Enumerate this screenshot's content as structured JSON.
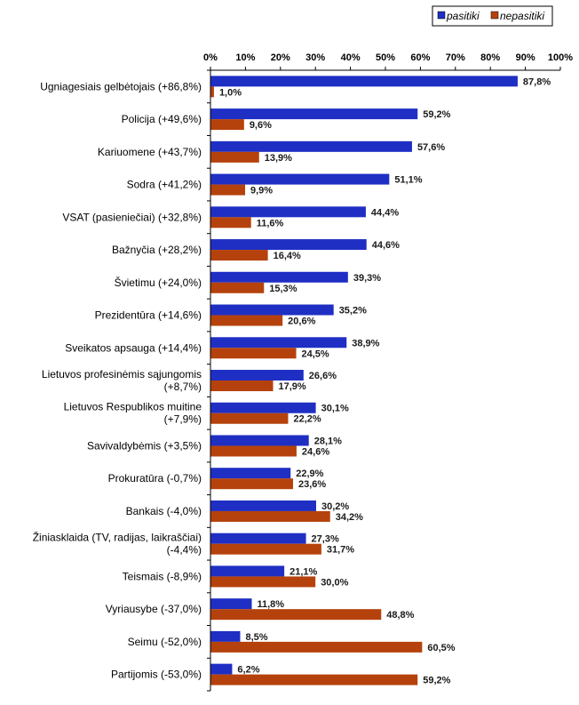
{
  "chart_data": {
    "type": "bar",
    "orientation": "horizontal",
    "categories": [
      "Ugniagesiais gelbėtojais (+86,8%)",
      "Policija (+49,6%)",
      "Kariuomene (+43,7%)",
      "Sodra (+41,2%)",
      "VSAT (pasieniečiai) (+32,8%)",
      "Bažnyčia (+28,2%)",
      "Švietimu (+24,0%)",
      "Prezidentūra (+14,6%)",
      "Sveikatos apsauga (+14,4%)",
      "Lietuvos profesinėmis sąjungomis (+8,7%)",
      "Lietuvos Respublikos muitine (+7,9%)",
      "Savivaldybėmis (+3,5%)",
      "Prokuratūra (-0,7%)",
      "Bankais (-4,0%)",
      "Žiniasklaida (TV, radijas, laikraščiai) (-4,4%)",
      "Teismais (-8,9%)",
      "Vyriausybe (-37,0%)",
      "Seimu (-52,0%)",
      "Partijomis (-53,0%)"
    ],
    "category_lines": [
      [
        "Ugniagesiais gelbėtojais (+86,8%)"
      ],
      [
        "Policija (+49,6%)"
      ],
      [
        "Kariuomene (+43,7%)"
      ],
      [
        "Sodra (+41,2%)"
      ],
      [
        "VSAT (pasieniečiai) (+32,8%)"
      ],
      [
        "Bažnyčia (+28,2%)"
      ],
      [
        "Švietimu (+24,0%)"
      ],
      [
        "Prezidentūra (+14,6%)"
      ],
      [
        "Sveikatos apsauga (+14,4%)"
      ],
      [
        "Lietuvos profesinėmis sąjungomis",
        "(+8,7%)"
      ],
      [
        "Lietuvos Respublikos muitine",
        "(+7,9%)"
      ],
      [
        "Savivaldybėmis (+3,5%)"
      ],
      [
        "Prokuratūra (-0,7%)"
      ],
      [
        "Bankais (-4,0%)"
      ],
      [
        "Žiniasklaida (TV, radijas, laikraščiai)",
        "(-4,4%)"
      ],
      [
        "Teismais (-8,9%)"
      ],
      [
        "Vyriausybe (-37,0%)"
      ],
      [
        "Seimu (-52,0%)"
      ],
      [
        "Partijomis (-53,0%)"
      ]
    ],
    "series": [
      {
        "name": "pasitiki",
        "color": "#1f2fc4",
        "values": [
          87.8,
          59.2,
          57.6,
          51.1,
          44.4,
          44.6,
          39.3,
          35.2,
          38.9,
          26.6,
          30.1,
          28.1,
          22.9,
          30.2,
          27.3,
          21.1,
          11.8,
          8.5,
          6.2
        ],
        "labels": [
          "87,8%",
          "59,2%",
          "57,6%",
          "51,1%",
          "44,4%",
          "44,6%",
          "39,3%",
          "35,2%",
          "38,9%",
          "26,6%",
          "30,1%",
          "28,1%",
          "22,9%",
          "30,2%",
          "27,3%",
          "21,1%",
          "11,8%",
          "8,5%",
          "6,2%"
        ]
      },
      {
        "name": "nepasitiki",
        "color": "#b5420c",
        "values": [
          1.0,
          9.6,
          13.9,
          9.9,
          11.6,
          16.4,
          15.3,
          20.6,
          24.5,
          17.9,
          22.2,
          24.6,
          23.6,
          34.2,
          31.7,
          30.0,
          48.8,
          60.5,
          59.2
        ],
        "labels": [
          "1,0%",
          "9,6%",
          "13,9%",
          "9,9%",
          "11,6%",
          "16,4%",
          "15,3%",
          "20,6%",
          "24,5%",
          "17,9%",
          "22,2%",
          "24,6%",
          "23,6%",
          "34,2%",
          "31,7%",
          "30,0%",
          "48,8%",
          "60,5%",
          "59,2%"
        ]
      }
    ],
    "xlim": [
      0,
      100
    ],
    "x_ticks": [
      "0%",
      "10%",
      "20%",
      "30%",
      "40%",
      "50%",
      "60%",
      "70%",
      "80%",
      "90%",
      "100%"
    ],
    "x_axis_position": "top",
    "grid": false,
    "legend_position": "top-right",
    "title": "",
    "xlabel": "",
    "ylabel": ""
  }
}
